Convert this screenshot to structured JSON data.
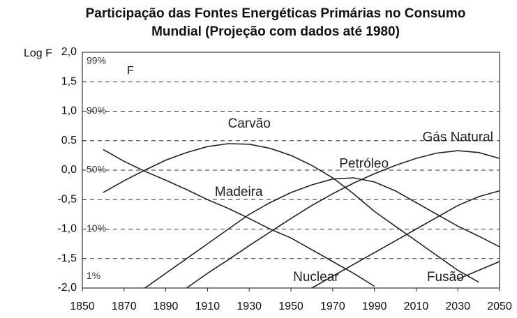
{
  "chart_data": {
    "type": "line",
    "title": [
      "Participação das Fontes Energéticas Primárias no Consumo",
      "Mundial (Projeção com dados até 1980)"
    ],
    "y_label": "Log F",
    "annotations": [
      "F",
      "99%",
      "90%",
      "50%",
      "10%",
      "1%"
    ],
    "x": [
      1850,
      1860,
      1870,
      1880,
      1890,
      1900,
      1910,
      1920,
      1930,
      1940,
      1950,
      1960,
      1970,
      1980,
      1990,
      2000,
      2010,
      2020,
      2030,
      2040,
      2050
    ],
    "series": [
      {
        "name": "Carvão",
        "color": "#222222",
        "values": [
          null,
          -0.38,
          -0.18,
          0.0,
          0.17,
          0.3,
          0.4,
          0.45,
          0.44,
          0.37,
          0.25,
          0.08,
          -0.13,
          -0.4,
          -0.7,
          -0.95,
          -1.2,
          -1.45,
          -1.7,
          -1.9,
          null
        ]
      },
      {
        "name": "Madeira",
        "color": "#222222",
        "values": [
          null,
          0.35,
          0.15,
          -0.02,
          -0.17,
          -0.33,
          -0.5,
          -0.65,
          -0.82,
          -1.0,
          -1.15,
          -1.35,
          -1.55,
          -1.75,
          -1.97,
          null,
          null,
          null,
          null,
          null,
          null
        ]
      },
      {
        "name": "Petróleo",
        "color": "#222222",
        "values": [
          null,
          null,
          null,
          -2.0,
          -1.75,
          -1.5,
          -1.25,
          -1.0,
          -0.75,
          -0.55,
          -0.38,
          -0.25,
          -0.15,
          -0.13,
          -0.2,
          -0.35,
          -0.55,
          -0.75,
          -0.95,
          -1.12,
          -1.3
        ]
      },
      {
        "name": "Gás Natural",
        "color": "#222222",
        "values": [
          null,
          null,
          null,
          null,
          null,
          -2.0,
          -1.75,
          -1.52,
          -1.28,
          -1.05,
          -0.82,
          -0.6,
          -0.4,
          -0.22,
          -0.06,
          0.08,
          0.2,
          0.29,
          0.33,
          0.3,
          0.2
        ]
      },
      {
        "name": "Nuclear",
        "color": "#222222",
        "values": [
          null,
          null,
          null,
          null,
          null,
          null,
          null,
          null,
          null,
          null,
          null,
          -2.0,
          -1.8,
          -1.6,
          -1.4,
          -1.2,
          -1.0,
          -0.8,
          -0.6,
          -0.45,
          -0.35
        ]
      },
      {
        "name": "Fusão",
        "color": "#222222",
        "values": [
          null,
          null,
          null,
          null,
          null,
          null,
          null,
          null,
          null,
          null,
          null,
          null,
          null,
          null,
          null,
          null,
          null,
          null,
          -1.85,
          -1.7,
          -1.55
        ]
      }
    ],
    "xlim": [
      1850,
      2050
    ],
    "xticks": [
      1850,
      1870,
      1890,
      1910,
      1930,
      1950,
      1970,
      1990,
      2010,
      2030,
      2050
    ],
    "ylim": [
      -2.0,
      2.0
    ],
    "yticks": [
      {
        "value": 2.0,
        "label": "2,0"
      },
      {
        "value": 1.5,
        "label": "1,5"
      },
      {
        "value": 1.0,
        "label": "1,0"
      },
      0.5,
      {
        "value": 0.0,
        "label": "0,0"
      },
      {
        "value": -0.5,
        "label": "-0,5"
      },
      {
        "value": -1.0,
        "label": "-1,0"
      },
      {
        "value": -1.5,
        "label": "-1,5"
      },
      {
        "value": -2.0,
        "label": "-2,0"
      }
    ],
    "grid": true
  }
}
